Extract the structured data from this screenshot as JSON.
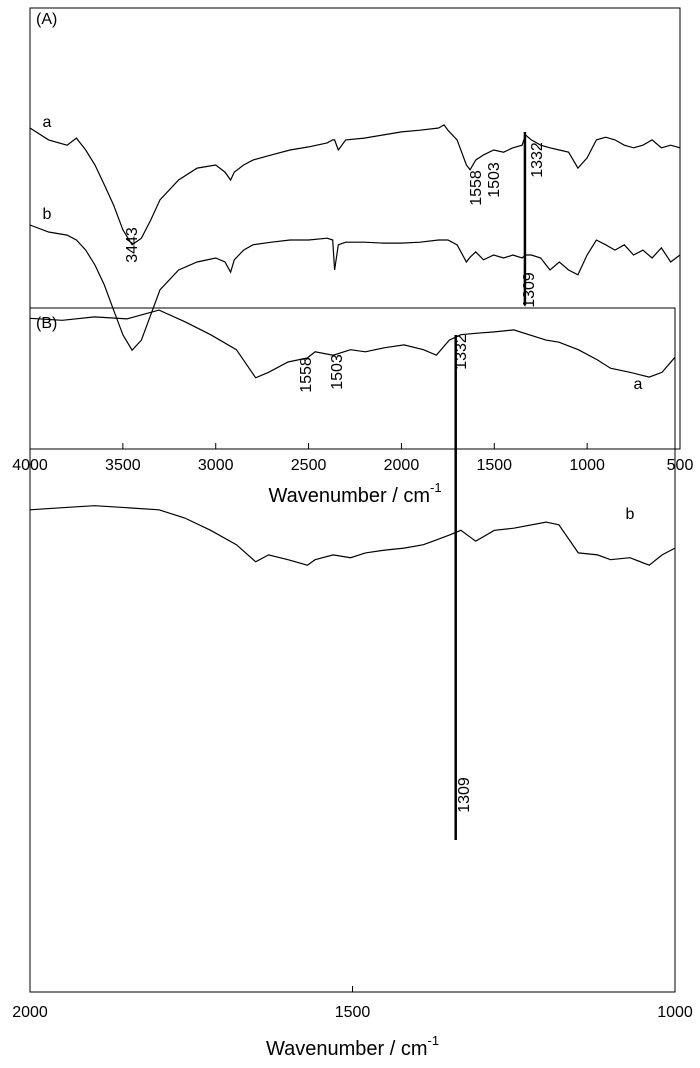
{
  "chart_data": [
    {
      "type": "line",
      "panel_label": "(A)",
      "xlabel": "Wavenumber / cm",
      "xlabel_sup": "-1",
      "xlim": [
        4000,
        500
      ],
      "xticks": [
        4000,
        3500,
        3000,
        2500,
        2000,
        1500,
        1000,
        500
      ],
      "ylim": [
        0,
        100
      ],
      "x": [
        4000,
        3900,
        3800,
        3750,
        3700,
        3650,
        3600,
        3550,
        3500,
        3450,
        3400,
        3350,
        3300,
        3200,
        3100,
        3000,
        2950,
        2920,
        2900,
        2850,
        2800,
        2700,
        2600,
        2500,
        2400,
        2370,
        2360,
        2340,
        2300,
        2200,
        2100,
        2000,
        1900,
        1800,
        1770,
        1750,
        1700,
        1650,
        1630,
        1600,
        1558,
        1503,
        1450,
        1400,
        1350,
        1332,
        1300,
        1250,
        1200,
        1150,
        1100,
        1050,
        1000,
        950,
        900,
        850,
        800,
        750,
        700,
        650,
        600,
        550,
        500
      ],
      "series": [
        {
          "name": "a",
          "color": "#000000",
          "values": [
            72.8,
            70.1,
            68.9,
            70.5,
            67.8,
            64.4,
            59.9,
            55.3,
            49.7,
            46.3,
            47.8,
            51.9,
            56.5,
            61.0,
            63.7,
            64.4,
            62.8,
            61.0,
            62.8,
            64.4,
            65.5,
            66.7,
            67.8,
            68.5,
            69.4,
            70.1,
            70.1,
            67.8,
            70.1,
            70.5,
            71.2,
            71.9,
            72.3,
            72.8,
            73.5,
            72.3,
            70.1,
            64.4,
            63.3,
            65.5,
            66.7,
            67.8,
            67.3,
            68.3,
            68.9,
            71.2,
            70.1,
            68.9,
            68.3,
            67.8,
            67.3,
            63.7,
            66.0,
            70.1,
            70.7,
            70.1,
            68.9,
            68.3,
            68.9,
            70.1,
            68.3,
            68.9,
            68.3
          ]
        },
        {
          "name": "b",
          "color": "#000000",
          "values": [
            50.8,
            49.2,
            48.5,
            47.4,
            45.1,
            41.7,
            37.2,
            31.5,
            25.9,
            22.4,
            24.7,
            30.4,
            36.1,
            40.6,
            42.4,
            43.3,
            42.4,
            40.1,
            42.9,
            45.1,
            46.3,
            46.9,
            47.4,
            47.4,
            47.8,
            47.4,
            40.6,
            46.3,
            46.9,
            46.9,
            46.7,
            46.7,
            46.9,
            47.4,
            47.4,
            47.4,
            46.3,
            42.4,
            43.5,
            44.7,
            42.9,
            44.0,
            43.3,
            44.0,
            43.3,
            44.0,
            44.0,
            43.3,
            40.6,
            42.4,
            40.6,
            39.5,
            44.0,
            47.4,
            46.3,
            45.1,
            46.3,
            44.0,
            45.1,
            43.3,
            45.6,
            42.4,
            44.0
          ]
        }
      ],
      "annotations": [
        "a",
        "b",
        "3443",
        "1558",
        "1503",
        "1332",
        "1309"
      ]
    },
    {
      "type": "line",
      "panel_label": "(B)",
      "xlabel": "Wavenumber / cm",
      "xlabel_sup": "-1",
      "xlim": [
        2000,
        1000
      ],
      "xticks": [
        2000,
        1500,
        1000
      ],
      "ylim": [
        0,
        100
      ],
      "x": [
        2000,
        1950,
        1900,
        1850,
        1800,
        1760,
        1720,
        1680,
        1650,
        1630,
        1600,
        1570,
        1558,
        1530,
        1503,
        1480,
        1450,
        1420,
        1390,
        1370,
        1350,
        1332,
        1309,
        1280,
        1250,
        1200,
        1180,
        1150,
        1120,
        1100,
        1070,
        1040,
        1020,
        1000
      ],
      "series": [
        {
          "name": "a",
          "color": "#000000",
          "values": [
            98.5,
            98.2,
            98.7,
            98.4,
            99.7,
            98.0,
            96.1,
            93.9,
            89.8,
            90.6,
            92.1,
            92.7,
            93.6,
            93.1,
            93.9,
            93.6,
            94.2,
            94.6,
            93.9,
            93.1,
            95.3,
            96.1,
            96.3,
            96.5,
            96.8,
            95.3,
            95.0,
            93.9,
            92.4,
            91.2,
            90.6,
            89.9,
            90.6,
            92.8
          ]
        },
        {
          "name": "b",
          "color": "#000000",
          "values": [
            70.5,
            70.8,
            71.1,
            70.8,
            70.5,
            69.3,
            67.5,
            65.4,
            62.9,
            63.9,
            63.2,
            62.4,
            63.2,
            63.9,
            63.5,
            64.2,
            64.6,
            64.9,
            65.4,
            66.1,
            66.8,
            67.5,
            65.9,
            67.5,
            67.8,
            68.7,
            68.3,
            64.2,
            63.9,
            63.2,
            63.5,
            62.4,
            63.9,
            64.9
          ]
        }
      ],
      "annotations": [
        "a",
        "b",
        "1558",
        "1503",
        "1332",
        "1309"
      ]
    }
  ]
}
